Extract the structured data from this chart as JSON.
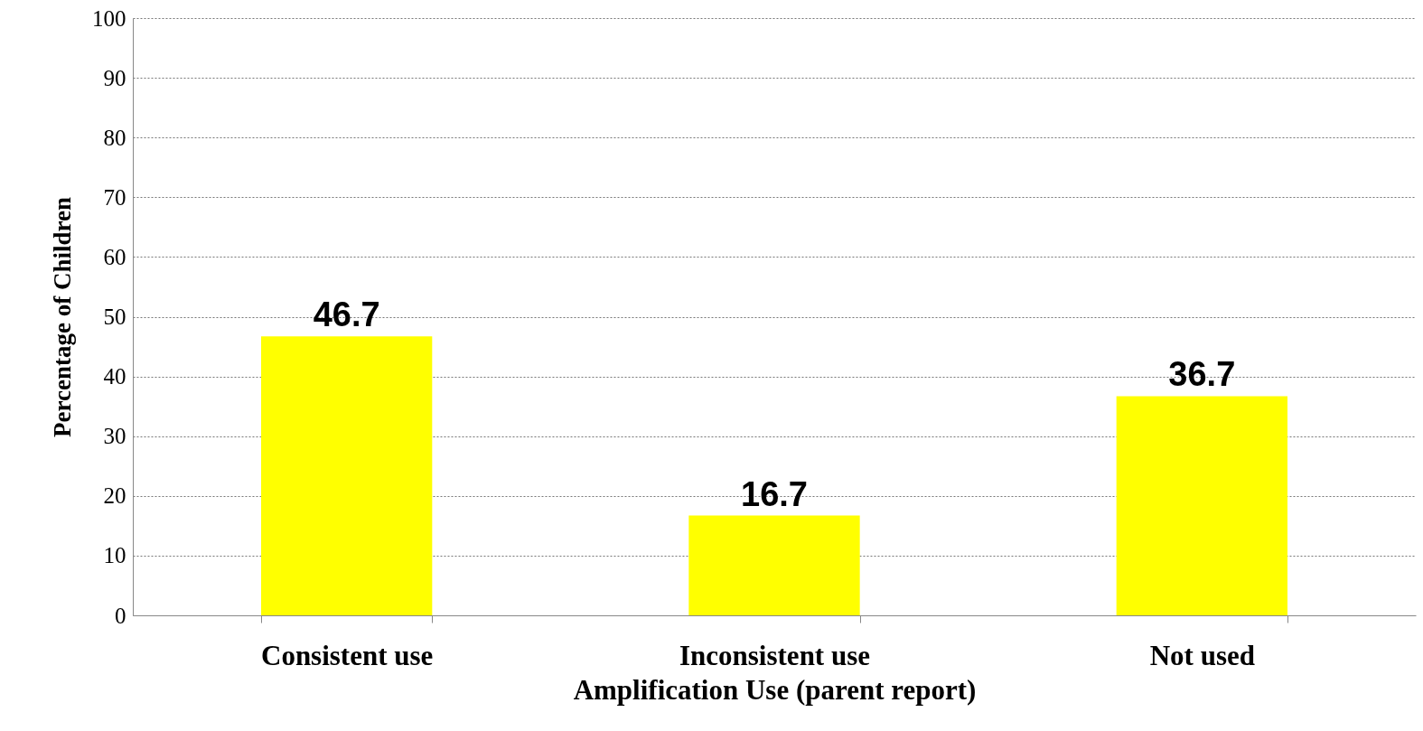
{
  "chart_data": {
    "type": "bar",
    "xlabel": "Amplification Use (parent report)",
    "ylabel": "Percentage of Children",
    "categories": [
      "Consistent use",
      "Inconsistent use",
      "Not used"
    ],
    "values": [
      46.7,
      16.7,
      36.7
    ],
    "color": "#ffff00",
    "ylim": [
      0,
      100
    ],
    "yticks": [
      0,
      10,
      20,
      30,
      40,
      50,
      60,
      70,
      80,
      90,
      100
    ],
    "grid": "y",
    "data_labels": true
  }
}
